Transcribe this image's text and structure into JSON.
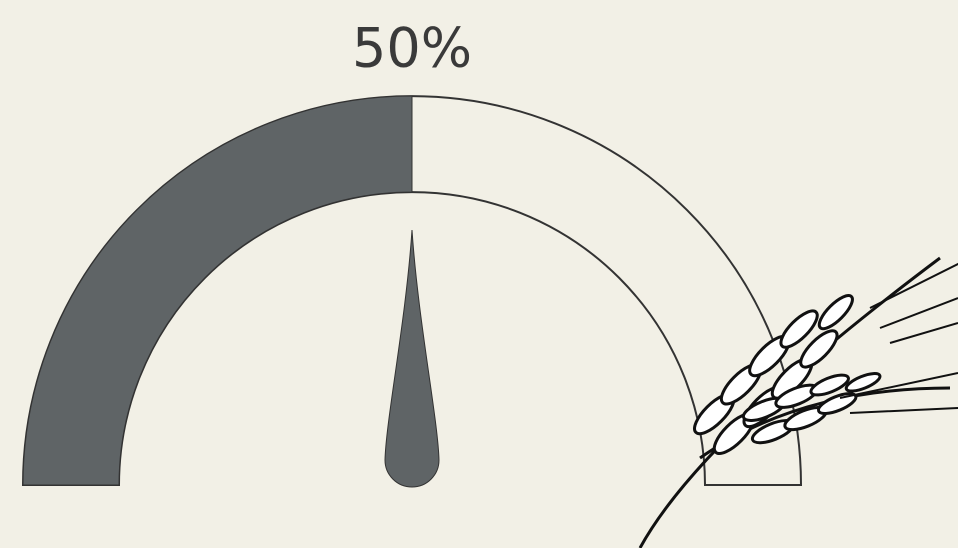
{
  "chart_data": {
    "type": "gauge",
    "values": [
      50
    ],
    "value_labels": [
      "50%"
    ],
    "ylim": [
      0,
      100
    ],
    "color": "#5f6466"
  }
}
